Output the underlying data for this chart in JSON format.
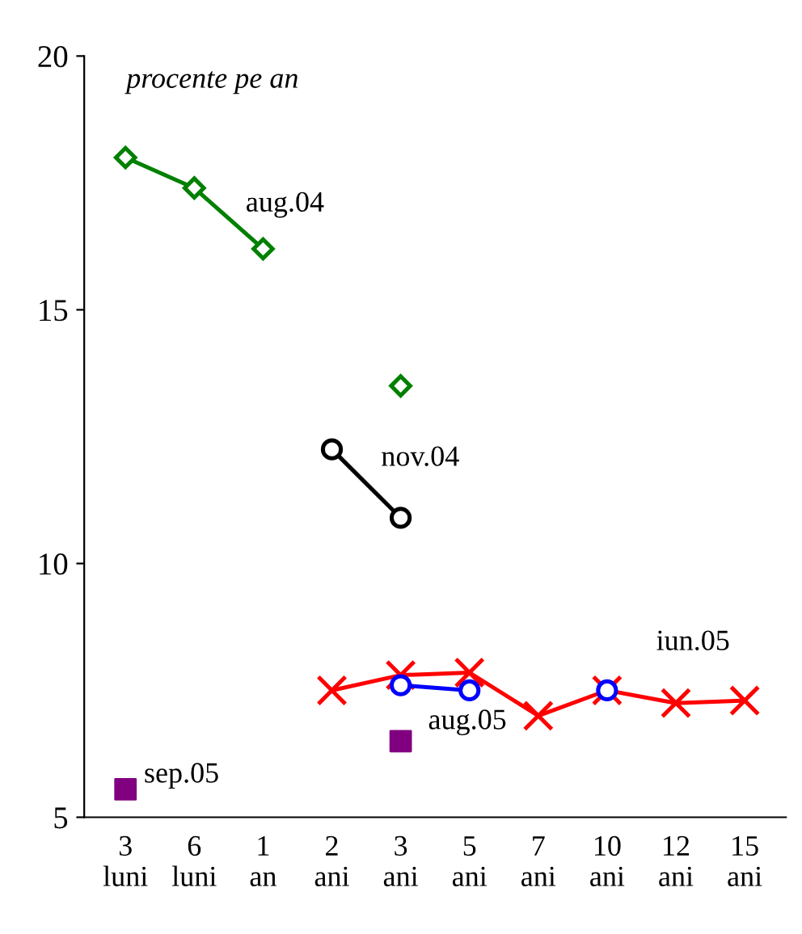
{
  "chart_data": {
    "type": "line",
    "ylabel": "procente pe an",
    "categories": [
      "3\nluni",
      "6\nluni",
      "1\nan",
      "2\nani",
      "3\nani",
      "5\nani",
      "7\nani",
      "10\nani",
      "12\nani",
      "15\nani"
    ],
    "series": [
      {
        "color": "#008000",
        "marker": "diamond",
        "values": [
          18.0,
          17.4,
          16.2,
          null,
          13.5,
          null,
          null,
          null,
          null,
          null
        ]
      },
      {
        "color": "#000000",
        "marker": "circle",
        "values": [
          null,
          null,
          null,
          12.25,
          10.9,
          null,
          null,
          null,
          null,
          null
        ]
      },
      {
        "color": "#ff0000",
        "marker": "cross",
        "values": [
          null,
          null,
          null,
          7.5,
          7.8,
          7.85,
          7.0,
          7.5,
          7.25,
          7.3
        ]
      },
      {
        "color": "#0000ff",
        "marker": "circle",
        "values": [
          null,
          null,
          null,
          null,
          7.6,
          7.5,
          null,
          7.5,
          null,
          null
        ]
      },
      {
        "type": "scatter",
        "color": "#800080",
        "marker": "square",
        "values": [
          5.55,
          null,
          null,
          null,
          6.5,
          null,
          null,
          null,
          null,
          null
        ]
      }
    ],
    "annotations": [
      "aug.04",
      "nov.04",
      "aug.05",
      "iun.05",
      "sep.05"
    ],
    "ylim": [
      5,
      20
    ],
    "yticks": [
      5,
      10,
      15,
      20
    ],
    "grid": false,
    "legend": false
  }
}
